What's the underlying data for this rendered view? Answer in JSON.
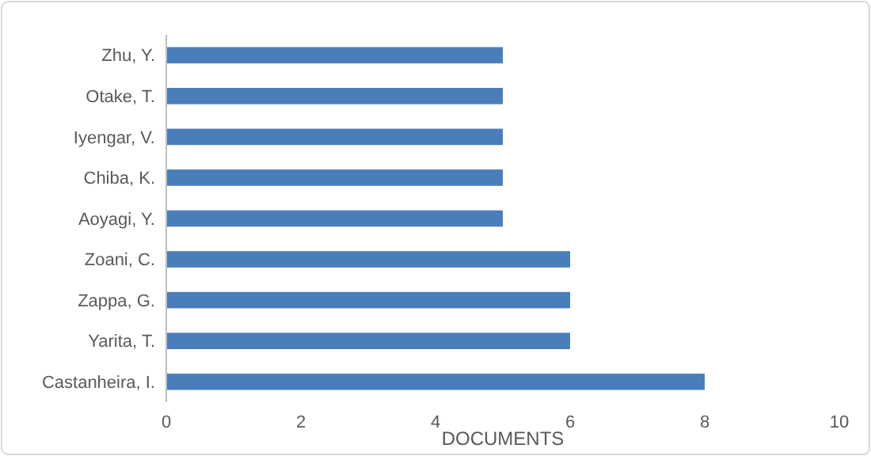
{
  "chart_data": {
    "type": "bar",
    "orientation": "horizontal",
    "xlabel": "DOCUMENTS",
    "categories": [
      "Zhu, Y.",
      "Otake, T.",
      "Iyengar, V.",
      "Chiba, K.",
      "Aoyagi, Y.",
      "Zoani, C.",
      "Zappa, G.",
      "Yarita, T.",
      "Castanheira, I."
    ],
    "values": [
      5,
      5,
      5,
      5,
      5,
      6,
      6,
      6,
      8
    ],
    "color": "#4a7ebb",
    "xlim": [
      0,
      10
    ],
    "xticks": [
      0,
      2,
      4,
      6,
      8,
      10
    ],
    "grid": false
  }
}
